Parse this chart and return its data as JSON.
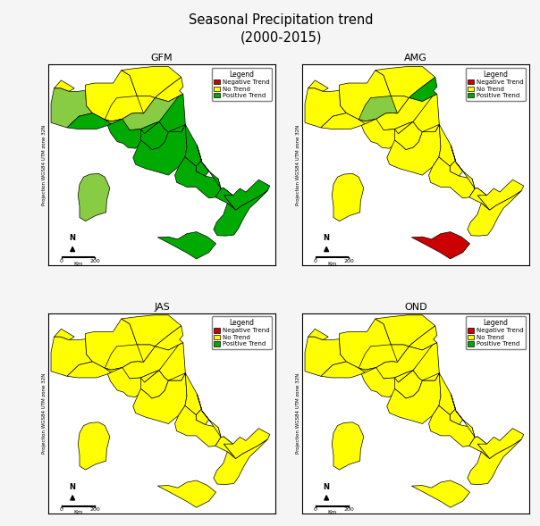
{
  "title": "Seasonal Precipitation trend\n(2000-2015)",
  "panels": [
    "GFM",
    "AMG",
    "JAS",
    "OND"
  ],
  "legend_labels": [
    "Negative Trend",
    "No Trend",
    "Positive Trend"
  ],
  "negative_color": "#cc0000",
  "no_trend_color": "#ffff00",
  "positive_color": "#00aa00",
  "light_green": "#88cc44",
  "background": "#f5f5f5",
  "ylabel": "Projection WGS84 UTM zone 32N",
  "scale_label": "Km",
  "north_label": "N",
  "xlim": [
    6.5,
    18.8
  ],
  "ylim": [
    36.3,
    47.2
  ],
  "panel_colors": {
    "GFM": {
      "Valle_Aosta": "#ffff00",
      "Piemonte": "#88cc44",
      "Lombardia": "#ffff00",
      "Trentino_AA": "#ffff00",
      "Veneto": "#ffff00",
      "Friuli_VG": "#ffff00",
      "Liguria": "#00aa00",
      "Emilia_Romagna": "#88cc44",
      "Toscana": "#00aa00",
      "Umbria": "#00aa00",
      "Marche": "#00aa00",
      "Lazio": "#00aa00",
      "Abruzzo": "#00aa00",
      "Molise": "#00aa00",
      "Campania": "#00aa00",
      "Puglia": "#00aa00",
      "Basilicata": "#00aa00",
      "Calabria": "#00aa00",
      "Sicilia": "#00aa00",
      "Sardegna": "#88cc44"
    },
    "AMG": {
      "Valle_Aosta": "#ffff00",
      "Piemonte": "#ffff00",
      "Lombardia": "#ffff00",
      "Trentino_AA": "#ffff00",
      "Veneto": "#88cc44",
      "Friuli_VG": "#00aa00",
      "Liguria": "#ffff00",
      "Emilia_Romagna": "#ffff00",
      "Toscana": "#ffff00",
      "Umbria": "#ffff00",
      "Marche": "#ffff00",
      "Lazio": "#ffff00",
      "Abruzzo": "#ffff00",
      "Molise": "#ffff00",
      "Campania": "#ffff00",
      "Puglia": "#ffff00",
      "Basilicata": "#ffff00",
      "Calabria": "#ffff00",
      "Sicilia": "#cc0000",
      "Sardegna": "#ffff00"
    },
    "JAS": {
      "Valle_Aosta": "#ffff00",
      "Piemonte": "#ffff00",
      "Lombardia": "#ffff00",
      "Trentino_AA": "#ffff00",
      "Veneto": "#ffff00",
      "Friuli_VG": "#ffff00",
      "Liguria": "#ffff00",
      "Emilia_Romagna": "#ffff00",
      "Toscana": "#ffff00",
      "Umbria": "#ffff00",
      "Marche": "#ffff00",
      "Lazio": "#ffff00",
      "Abruzzo": "#ffff00",
      "Molise": "#ffff00",
      "Campania": "#ffff00",
      "Puglia": "#ffff00",
      "Basilicata": "#ffff00",
      "Calabria": "#ffff00",
      "Sicilia": "#ffff00",
      "Sardegna": "#ffff00"
    },
    "OND": {
      "Valle_Aosta": "#ffff00",
      "Piemonte": "#ffff00",
      "Lombardia": "#ffff00",
      "Trentino_AA": "#ffff00",
      "Veneto": "#ffff00",
      "Friuli_VG": "#ffff00",
      "Liguria": "#ffff00",
      "Emilia_Romagna": "#ffff00",
      "Toscana": "#ffff00",
      "Umbria": "#ffff00",
      "Marche": "#ffff00",
      "Lazio": "#ffff00",
      "Abruzzo": "#ffff00",
      "Molise": "#ffff00",
      "Campania": "#ffff00",
      "Puglia": "#ffff00",
      "Basilicata": "#ffff00",
      "Calabria": "#ffff00",
      "Sicilia": "#ffff00",
      "Sardegna": "#ffff00"
    }
  }
}
